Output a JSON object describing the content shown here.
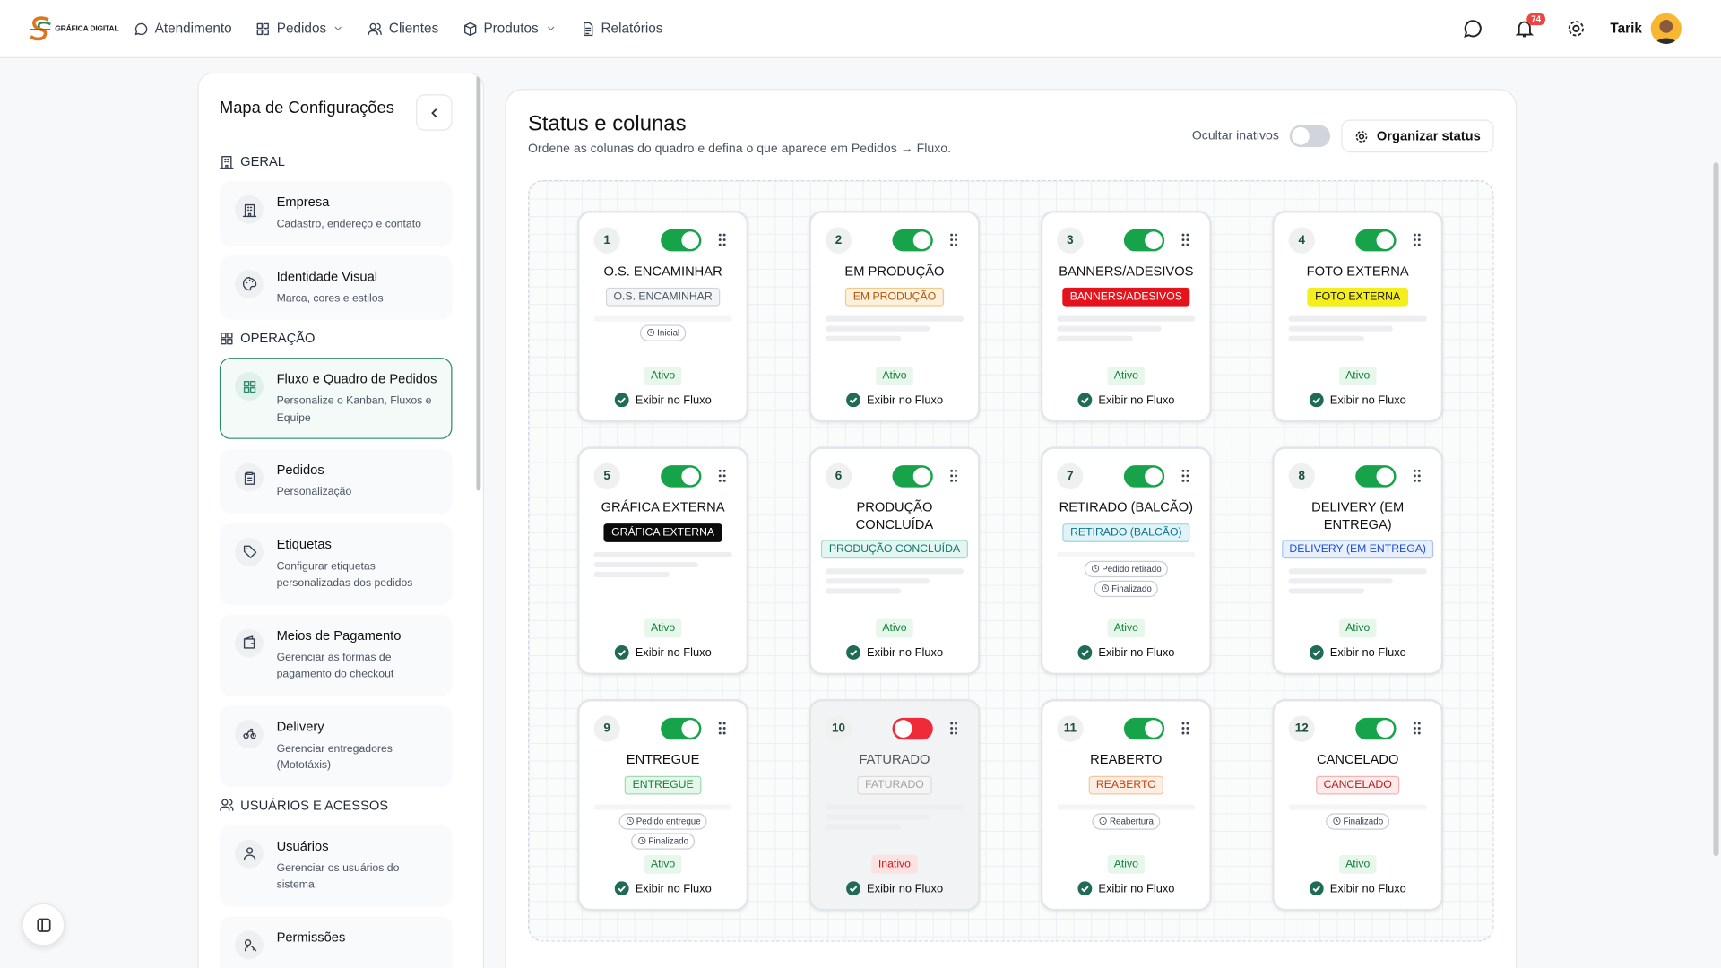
{
  "header": {
    "logo": "GRÁFICA DIGITAL",
    "nav": [
      {
        "label": "Atendimento",
        "dropdown": false
      },
      {
        "label": "Pedidos",
        "dropdown": true
      },
      {
        "label": "Clientes",
        "dropdown": false
      },
      {
        "label": "Produtos",
        "dropdown": true
      },
      {
        "label": "Relatórios",
        "dropdown": false
      }
    ],
    "notifications": 74,
    "user": "Tarik"
  },
  "sidebar": {
    "title": "Mapa de Configurações",
    "sections": [
      {
        "title": "GERAL",
        "items": [
          {
            "title": "Empresa",
            "description": "Cadastro, endereço e contato",
            "selected": false
          },
          {
            "title": "Identidade Visual",
            "description": "Marca, cores e estilos",
            "selected": false
          }
        ]
      },
      {
        "title": "OPERAÇÃO",
        "items": [
          {
            "title": "Fluxo e Quadro de Pedidos",
            "description": "Personalize o Kanban, Fluxos e Equipe",
            "selected": true
          },
          {
            "title": "Pedidos",
            "description": "Personalização",
            "selected": false
          },
          {
            "title": "Etiquetas",
            "description": "Configurar etiquetas personalizadas dos pedidos",
            "selected": false
          },
          {
            "title": "Meios de Pagamento",
            "description": "Gerenciar as formas de pagamento do checkout",
            "selected": false
          },
          {
            "title": "Delivery",
            "description": "Gerenciar entregadores (Mototáxis)",
            "selected": false
          }
        ]
      },
      {
        "title": "USUÁRIOS E ACESSOS",
        "items": [
          {
            "title": "Usuários",
            "description": "Gerenciar os usuários do sistema.",
            "selected": false
          },
          {
            "title": "Permissões",
            "description": "",
            "selected": false
          }
        ]
      }
    ]
  },
  "main": {
    "title": "Status e colunas",
    "subtitle": "Ordene as colunas do quadro e defina o que aparece em Pedidos → Fluxo.",
    "hide_inactive_label": "Ocultar inativos",
    "hide_inactive": false,
    "organize_button": "Organizar status",
    "flow_label": "Exibir no Fluxo",
    "cards": [
      {
        "number": 1,
        "name": "O.S. ENCAMINHAR",
        "badge": "O.S. ENCAMINHAR",
        "badge_bg": "#f3f4f6",
        "badge_color": "#4b5563",
        "badge_border": "#d1d5db",
        "tags": [
          "Inicial"
        ],
        "status": "Ativo",
        "enabled": true
      },
      {
        "number": 2,
        "name": "EM PRODUÇÃO",
        "badge": "EM PRODUÇÃO",
        "badge_bg": "#fdf1dc",
        "badge_color": "#b45309",
        "badge_border": "#f3c98b",
        "tags": [],
        "status": "Ativo",
        "enabled": true
      },
      {
        "number": 3,
        "name": "BANNERS/ADESIVOS",
        "badge": "BANNERS/ADESIVOS",
        "badge_bg": "#e5131b",
        "badge_color": "#ffffff",
        "badge_border": "#e5131b",
        "tags": [],
        "status": "Ativo",
        "enabled": true
      },
      {
        "number": 4,
        "name": "FOTO EXTERNA",
        "badge": "FOTO EXTERNA",
        "badge_bg": "#f4ee1c",
        "badge_color": "#111111",
        "badge_border": "#f4ee1c",
        "tags": [],
        "status": "Ativo",
        "enabled": true
      },
      {
        "number": 5,
        "name": "GRÁFICA EXTERNA",
        "badge": "GRÁFICA EXTERNA",
        "badge_bg": "#0b0b0b",
        "badge_color": "#ffffff",
        "badge_border": "#0b0b0b",
        "tags": [],
        "status": "Ativo",
        "enabled": true
      },
      {
        "number": 6,
        "name": "PRODUÇÃO CONCLUÍDA",
        "badge": "PRODUÇÃO CONCLUÍDA",
        "badge_bg": "#e3f6f1",
        "badge_color": "#0f766e",
        "badge_border": "#a3dccd",
        "tags": [],
        "status": "Ativo",
        "enabled": true
      },
      {
        "number": 7,
        "name": "RETIRADO (BALCÃO)",
        "badge": "RETIRADO (BALCÃO)",
        "badge_bg": "#e0f4f7",
        "badge_color": "#0e7490",
        "badge_border": "#9bd6e0",
        "tags": [
          "Pedido retirado",
          "Finalizado"
        ],
        "status": "Ativo",
        "enabled": true
      },
      {
        "number": 8,
        "name": "DELIVERY (EM ENTREGA)",
        "badge": "DELIVERY (EM ENTREGA)",
        "badge_bg": "#e8effd",
        "badge_color": "#1d4ed8",
        "badge_border": "#a9c3f3",
        "tags": [],
        "status": "Ativo",
        "enabled": true
      },
      {
        "number": 9,
        "name": "ENTREGUE",
        "badge": "ENTREGUE",
        "badge_bg": "#e5f6ea",
        "badge_color": "#15803d",
        "badge_border": "#a2d9b3",
        "tags": [
          "Pedido entregue",
          "Finalizado"
        ],
        "status": "Ativo",
        "enabled": true
      },
      {
        "number": 10,
        "name": "FATURADO",
        "badge": "FATURADO",
        "badge_bg": "#f5f5f5",
        "badge_color": "#a3a3a3",
        "badge_border": "#dcdcdc",
        "tags": [],
        "status": "Inativo",
        "enabled": false
      },
      {
        "number": 11,
        "name": "REABERTO",
        "badge": "REABERTO",
        "badge_bg": "#fdeee3",
        "badge_color": "#c2410c",
        "badge_border": "#f6c6a2",
        "tags": [
          "Reabertura"
        ],
        "status": "Ativo",
        "enabled": true
      },
      {
        "number": 12,
        "name": "CANCELADO",
        "badge": "CANCELADO",
        "badge_bg": "#fdeaea",
        "badge_color": "#b91c1c",
        "badge_border": "#f3b3b3",
        "tags": [
          "Finalizado"
        ],
        "status": "Ativo",
        "enabled": true
      }
    ]
  }
}
